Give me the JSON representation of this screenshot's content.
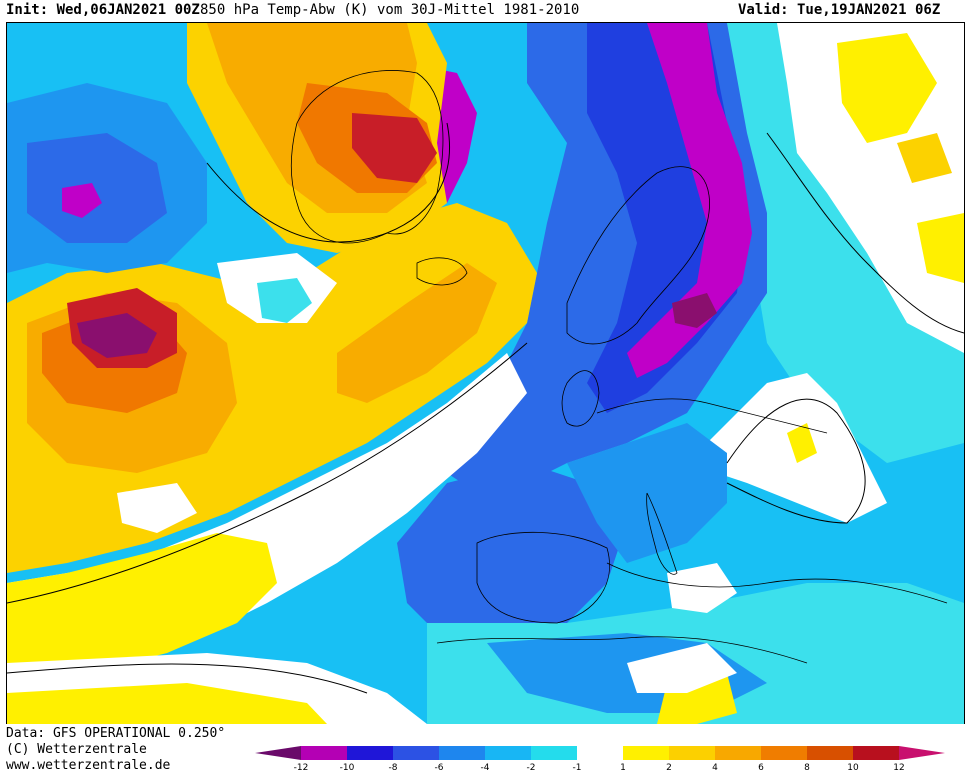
{
  "header": {
    "init": "Init: Wed,06JAN2021 00Z",
    "title": "850 hPa Temp-Abw (K) vom 30J-Mittel 1981-2010",
    "valid": "Valid: Tue,19JAN2021 06Z"
  },
  "footer": {
    "data_line": "Data: GFS OPERATIONAL 0.250°",
    "copyright_line": "(C) Wetterzentrale",
    "website_line": "www.wetterzentrale.de"
  },
  "legend": {
    "tick_labels": [
      "-12",
      "-10",
      "-8",
      "-6",
      "-4",
      "-2",
      "-1",
      "1",
      "2",
      "4",
      "6",
      "8",
      "10",
      "12"
    ],
    "colors": [
      "#6a0a6a",
      "#b400b4",
      "#1f16d8",
      "#2c52e4",
      "#1e86ee",
      "#18b6f4",
      "#24dcec",
      "#ffffff",
      "#fff000",
      "#fcd000",
      "#f8a800",
      "#f07d00",
      "#d85000",
      "#b8101e",
      "#c8106e"
    ]
  },
  "map": {
    "palette": {
      "deep_purple": "#8a0f6e",
      "magenta": "#c000c8",
      "blue_dark": "#1f3fe0",
      "blue": "#2c6ae8",
      "blue_mid": "#1e96f0",
      "cyan": "#18c0f4",
      "cyan_light": "#3ce0ec",
      "white": "#ffffff",
      "yellow": "#fff000",
      "yellow_orange": "#fcd200",
      "orange_light": "#f8ac00",
      "orange": "#f07800",
      "red": "#c81e28"
    }
  }
}
